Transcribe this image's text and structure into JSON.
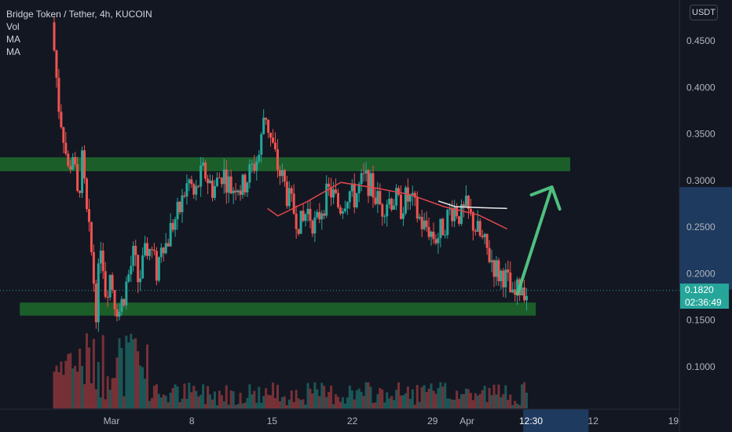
{
  "legend": {
    "symbol": "Bridge Token / Tether, 4h, KUCOIN",
    "vol": "Vol",
    "ma1": "MA",
    "ma2": "MA"
  },
  "currency_button": "USDT",
  "last_price": {
    "price": "0.1820",
    "countdown": "02:36:49",
    "value": 0.182
  },
  "colors": {
    "background": "#131722",
    "up": "#26a69a",
    "down": "#ef5350",
    "zone": "#1e6b2a",
    "arrow": "#4fbf7f",
    "ma_red": "#e0464a",
    "ma_white": "#e8e8e8",
    "axis_text": "#b2b5be"
  },
  "chart_data": {
    "type": "candlestick",
    "x_axis": {
      "ticks": [
        {
          "label": "Mar",
          "day": 0
        },
        {
          "label": "8",
          "day": 7
        },
        {
          "label": "15",
          "day": 14
        },
        {
          "label": "22",
          "day": 21
        },
        {
          "label": "29",
          "day": 28
        },
        {
          "label": "Apr",
          "day": 31
        },
        {
          "label": "12",
          "day": 42
        },
        {
          "label": "19",
          "day": 49
        }
      ],
      "cursor_label": "12:30",
      "projection_range_days": [
        35.9,
        41.6
      ]
    },
    "y_axis": {
      "range": [
        0.03,
        0.5
      ],
      "ticks": [
        "0.4500",
        "0.4000",
        "0.3500",
        "0.3000",
        "0.2500",
        "0.2000",
        "0.1500",
        "0.1000"
      ],
      "tick_values": [
        0.45,
        0.4,
        0.35,
        0.3,
        0.25,
        0.2,
        0.15,
        0.1
      ],
      "highlight_range": [
        0.183,
        0.293
      ]
    },
    "first_candle_day": -5,
    "candle_interval_hours": 4,
    "closes": [
      0.44,
      0.38,
      0.35,
      0.31,
      0.33,
      0.28,
      0.32,
      0.26,
      0.22,
      0.16,
      0.24,
      0.18,
      0.2,
      0.17,
      0.16,
      0.18,
      0.2,
      0.22,
      0.19,
      0.21,
      0.23,
      0.22,
      0.2,
      0.24,
      0.23,
      0.25,
      0.26,
      0.27,
      0.29,
      0.3,
      0.28,
      0.3,
      0.31,
      0.3,
      0.29,
      0.3,
      0.31,
      0.3,
      0.29,
      0.3,
      0.29,
      0.3,
      0.31,
      0.32,
      0.33,
      0.38,
      0.35,
      0.33,
      0.31,
      0.3,
      0.28,
      0.27,
      0.26,
      0.25,
      0.27,
      0.26,
      0.25,
      0.27,
      0.28,
      0.29,
      0.28,
      0.27,
      0.28,
      0.29,
      0.28,
      0.29,
      0.3,
      0.3,
      0.29,
      0.28,
      0.27,
      0.28,
      0.28,
      0.28,
      0.27,
      0.28,
      0.28,
      0.27,
      0.26,
      0.25,
      0.25,
      0.24,
      0.24,
      0.25,
      0.26,
      0.27,
      0.27,
      0.26,
      0.27,
      0.26,
      0.25,
      0.24,
      0.23,
      0.22,
      0.21,
      0.2,
      0.2,
      0.19,
      0.17,
      0.18,
      0.19,
      0.18
    ],
    "ranges": {
      "cluster_top": [
        0.302,
        0.327
      ],
      "cluster_bottom": [
        0.155,
        0.17
      ]
    },
    "zones": [
      {
        "low": 0.31,
        "high": 0.325,
        "from_day": -16,
        "to_day": 40
      },
      {
        "low": 0.155,
        "high": 0.169,
        "from_day": -8,
        "to_day": 37
      }
    ],
    "moving_averages": [
      {
        "color": "#e0464a",
        "points": [
          [
            13.6,
            0.27
          ],
          [
            14.5,
            0.262
          ],
          [
            17,
            0.277
          ],
          [
            20,
            0.298
          ],
          [
            23,
            0.292
          ],
          [
            26,
            0.285
          ],
          [
            29,
            0.272
          ],
          [
            32,
            0.263
          ],
          [
            34.5,
            0.248
          ]
        ]
      },
      {
        "color": "#e8e8e8",
        "points": [
          [
            28.5,
            0.278
          ],
          [
            30,
            0.272
          ],
          [
            32,
            0.271
          ],
          [
            34.5,
            0.27
          ]
        ]
      }
    ],
    "arrow": {
      "from": [
        35.4,
        0.178
      ],
      "to": [
        38.4,
        0.293
      ]
    }
  }
}
